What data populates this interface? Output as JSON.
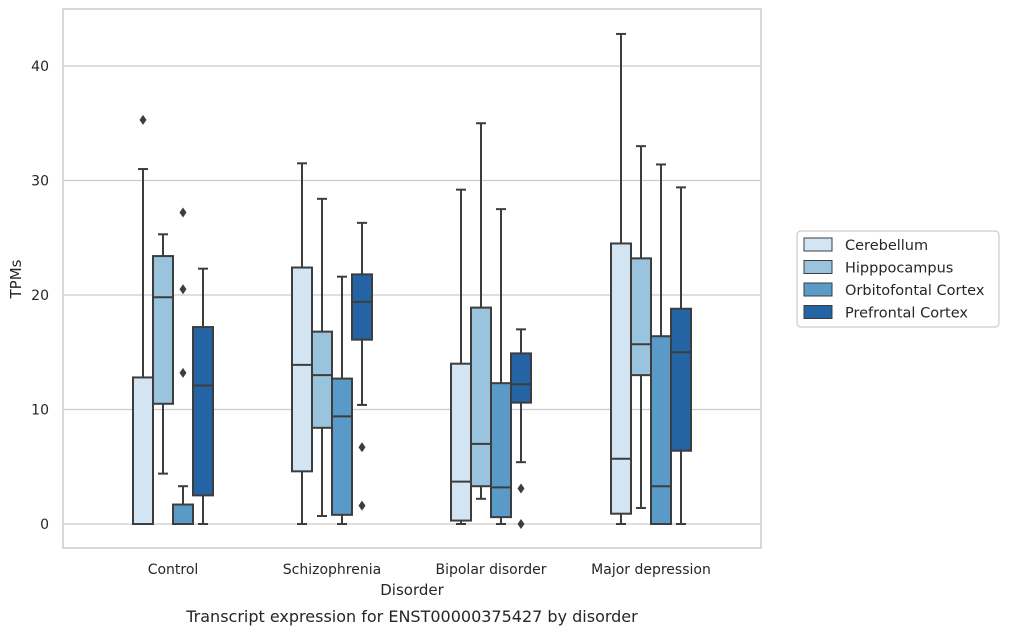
{
  "caption": "Transcript expression for ENST00000375427 by disorder",
  "chart_data": {
    "type": "box",
    "xlabel": "Disorder",
    "ylabel": "TPMs",
    "ylim": [
      -2,
      45
    ],
    "yticks": [
      0,
      10,
      20,
      30,
      40
    ],
    "grid": true,
    "legend_position": "right",
    "categories": [
      "Control",
      "Schizophrenia",
      "Bipolar disorder",
      "Major depression"
    ],
    "series": [
      {
        "name": "Cerebellum",
        "color": "#d3e4f3",
        "boxes": [
          {
            "whisker_low": 0,
            "q1": 0,
            "median": 0,
            "q3": 12.8,
            "whisker_high": 31.0,
            "outliers": [
              35.3
            ]
          },
          {
            "whisker_low": 0,
            "q1": 4.6,
            "median": 13.9,
            "q3": 22.4,
            "whisker_high": 31.5,
            "outliers": []
          },
          {
            "whisker_low": 0,
            "q1": 0.3,
            "median": 3.7,
            "q3": 14.0,
            "whisker_high": 29.2,
            "outliers": []
          },
          {
            "whisker_low": 0,
            "q1": 0.9,
            "median": 5.7,
            "q3": 24.5,
            "whisker_high": 42.8,
            "outliers": []
          }
        ]
      },
      {
        "name": "Hipppocampus",
        "color": "#9ac3de",
        "boxes": [
          {
            "whisker_low": 4.4,
            "q1": 10.5,
            "median": 19.8,
            "q3": 23.4,
            "whisker_high": 25.3,
            "outliers": []
          },
          {
            "whisker_low": 0.7,
            "q1": 8.4,
            "median": 13.0,
            "q3": 16.8,
            "whisker_high": 28.4,
            "outliers": []
          },
          {
            "whisker_low": 2.2,
            "q1": 3.3,
            "median": 7.0,
            "q3": 18.9,
            "whisker_high": 35.0,
            "outliers": []
          },
          {
            "whisker_low": 1.4,
            "q1": 13.0,
            "median": 15.7,
            "q3": 23.2,
            "whisker_high": 33.0,
            "outliers": []
          }
        ]
      },
      {
        "name": "Orbitofontal Cortex",
        "color": "#5a9ac8",
        "boxes": [
          {
            "whisker_low": 0,
            "q1": 0,
            "median": 0,
            "q3": 1.7,
            "whisker_high": 3.3,
            "outliers": [
              13.2,
              20.5,
              27.2
            ]
          },
          {
            "whisker_low": 0,
            "q1": 0.8,
            "median": 9.4,
            "q3": 12.7,
            "whisker_high": 21.6,
            "outliers": []
          },
          {
            "whisker_low": 0,
            "q1": 0.6,
            "median": 3.2,
            "q3": 12.3,
            "whisker_high": 27.5,
            "outliers": []
          },
          {
            "whisker_low": 0,
            "q1": 0,
            "median": 3.3,
            "q3": 16.4,
            "whisker_high": 31.4,
            "outliers": []
          }
        ]
      },
      {
        "name": "Prefrontal Cortex",
        "color": "#2464a4",
        "boxes": [
          {
            "whisker_low": 0,
            "q1": 2.5,
            "median": 12.1,
            "q3": 17.2,
            "whisker_high": 22.3,
            "outliers": []
          },
          {
            "whisker_low": 10.4,
            "q1": 16.1,
            "median": 19.4,
            "q3": 21.8,
            "whisker_high": 26.3,
            "outliers": [
              6.7,
              1.6
            ]
          },
          {
            "whisker_low": 5.4,
            "q1": 10.6,
            "median": 12.2,
            "q3": 14.9,
            "whisker_high": 17.0,
            "outliers": [
              3.1,
              0.0
            ]
          },
          {
            "whisker_low": 0,
            "q1": 6.4,
            "median": 15.0,
            "q3": 18.8,
            "whisker_high": 29.4,
            "outliers": []
          }
        ]
      }
    ]
  }
}
